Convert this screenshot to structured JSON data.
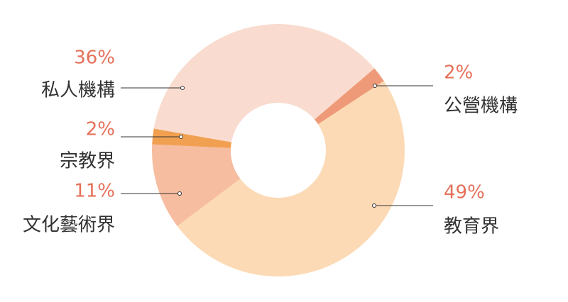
{
  "chart_data": {
    "type": "donut",
    "categories": [
      "公營機構",
      "教育界",
      "文化藝術界",
      "宗教界",
      "私人機構"
    ],
    "values": [
      2,
      49,
      11,
      2,
      36
    ],
    "value_labels": [
      "2%",
      "49%",
      "11%",
      "2%",
      "36%"
    ],
    "colors": [
      "#ee9a78",
      "#fcdab5",
      "#f6bda1",
      "#f1a052",
      "#f9dccf"
    ]
  }
}
